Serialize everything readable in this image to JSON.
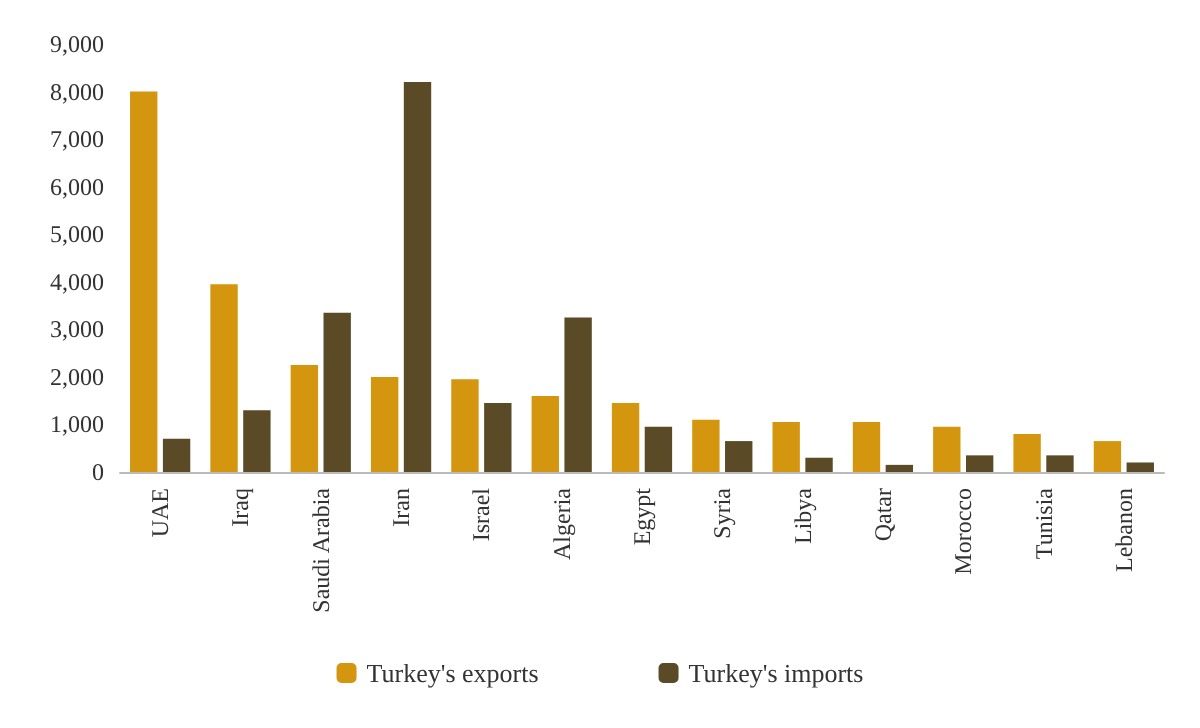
{
  "chart_data": {
    "type": "bar",
    "categories": [
      "UAE",
      "Iraq",
      "Saudi Arabia",
      "Iran",
      "Israel",
      "Algeria",
      "Egypt",
      "Syria",
      "Libya",
      "Qatar",
      "Morocco",
      "Tunisia",
      "Lebanon"
    ],
    "series": [
      {
        "name": "Turkey's exports",
        "color": "#d4960f",
        "values": [
          8000,
          3950,
          2250,
          2000,
          1950,
          1600,
          1450,
          1100,
          1050,
          1050,
          950,
          800,
          650
        ]
      },
      {
        "name": "Turkey's imports",
        "color": "#5a4a26",
        "values": [
          700,
          1300,
          3350,
          8200,
          1450,
          3250,
          950,
          650,
          300,
          150,
          350,
          350,
          200
        ]
      }
    ],
    "ylim": [
      0,
      9000
    ],
    "yticks": [
      {
        "value": 0,
        "label": "0"
      },
      {
        "value": 1000,
        "label": "1,000"
      },
      {
        "value": 2000,
        "label": "2,000"
      },
      {
        "value": 3000,
        "label": "3,000"
      },
      {
        "value": 4000,
        "label": "4,000"
      },
      {
        "value": 5000,
        "label": "5,000"
      },
      {
        "value": 6000,
        "label": "6,000"
      },
      {
        "value": 7000,
        "label": "7,000"
      },
      {
        "value": 8000,
        "label": "8,000"
      },
      {
        "value": 9000,
        "label": "9,000"
      }
    ],
    "grid": false,
    "legend": "bottom"
  }
}
